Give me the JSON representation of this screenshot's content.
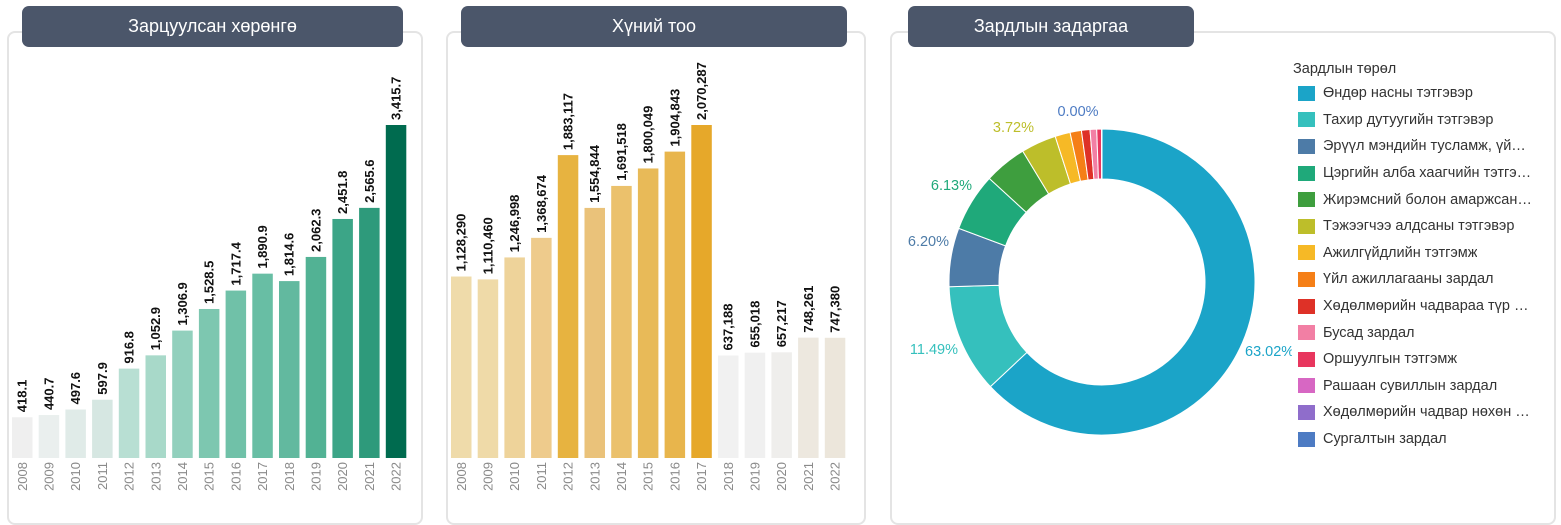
{
  "panels": {
    "assets": {
      "title": "Зарцуулсан хөрөнгө"
    },
    "people": {
      "title": "Хүний тоо"
    },
    "expense": {
      "title": "Зардлын задаргаа"
    }
  },
  "chart_data": [
    {
      "type": "bar",
      "title": "Зарцуулсан хөрөнгө",
      "categories": [
        "2008",
        "2009",
        "2010",
        "2011",
        "2012",
        "2013",
        "2014",
        "2015",
        "2016",
        "2017",
        "2018",
        "2019",
        "2020",
        "2021",
        "2022"
      ],
      "values": [
        418.1,
        440.7,
        497.6,
        597.9,
        916.8,
        1052.9,
        1306.9,
        1528.5,
        1717.4,
        1890.9,
        1814.6,
        2062.3,
        2451.8,
        2565.6,
        3415.7
      ],
      "labels": [
        "418.1",
        "440.7",
        "497.6",
        "597.9",
        "916.8",
        "1,052.9",
        "1,306.9",
        "1,528.5",
        "1,717.4",
        "1,890.9",
        "1,814.6",
        "2,062.3",
        "2,451.8",
        "2,565.6",
        "3,415.7"
      ],
      "colors": [
        "#efefef",
        "#eaefee",
        "#e0ebe8",
        "#d6e7e2",
        "#b8dfd3",
        "#a8d9c9",
        "#92d0bd",
        "#7dc7b0",
        "#70c1a8",
        "#68bea4",
        "#62b99f",
        "#52b294",
        "#3ca587",
        "#2e9a7b",
        "#006b4f"
      ],
      "ylim": [
        0,
        3600
      ]
    },
    {
      "type": "bar",
      "title": "Хүний тоо",
      "categories": [
        "2008",
        "2009",
        "2010",
        "2011",
        "2012",
        "2013",
        "2014",
        "2015",
        "2016",
        "2017",
        "2018",
        "2019",
        "2020",
        "2021",
        "2022"
      ],
      "values": [
        1128290,
        1110460,
        1246998,
        1368674,
        1883117,
        1554844,
        1691518,
        1800049,
        1904843,
        2070287,
        637188,
        655018,
        657217,
        748261,
        747380
      ],
      "labels": [
        "1,128,290",
        "1,110,460",
        "1,246,998",
        "1,368,674",
        "1,883,117",
        "1,554,844",
        "1,691,518",
        "1,800,049",
        "1,904,843",
        "2,070,287",
        "637,188",
        "655,018",
        "657,217",
        "748,261",
        "747,380"
      ],
      "colors": [
        "#efdbaa",
        "#efdaa8",
        "#eed39a",
        "#eecb8c",
        "#e7b340",
        "#eac27a",
        "#ebc16c",
        "#e8ba58",
        "#e8b54c",
        "#e6a82a",
        "#f1f1f1",
        "#f0f0f0",
        "#efeeec",
        "#ede8df",
        "#ece6db"
      ],
      "ylim": [
        0,
        2200000
      ]
    },
    {
      "type": "pie",
      "title": "Зардлын задаргаа",
      "legend_title": "Зардлын төрөл",
      "slices": [
        {
          "name": "Өндөр насны тэтгэвэр",
          "value": 63.02,
          "color": "#1ba4c8",
          "label": "63.02%"
        },
        {
          "name": "Тахир дутуугийн тэтгэвэр",
          "value": 11.49,
          "color": "#35c0bd",
          "label": "11.49%"
        },
        {
          "name": "Эрүүл мэндийн тусламж, үйлчилгээ",
          "value": 6.2,
          "color": "#4d7ba7",
          "label": "6.20%"
        },
        {
          "name": "Цэргийн алба хаагчийн тэтгэвэр",
          "value": 6.13,
          "color": "#1fa97a",
          "label": "6.13%"
        },
        {
          "name": "Жирэмсний болон амаржсаны тэтгэмж",
          "value": 4.5,
          "color": "#3e9e3e",
          "label": ""
        },
        {
          "name": "Тэжээгчээ алдсаны тэтгэвэр",
          "value": 3.72,
          "color": "#bdbe2a",
          "label": "3.72%"
        },
        {
          "name": "Ажилгүйдлийн тэтгэмж",
          "value": 1.6,
          "color": "#f6b926",
          "label": ""
        },
        {
          "name": "Үйл ажиллагааны зардал",
          "value": 1.2,
          "color": "#f57f17",
          "label": ""
        },
        {
          "name": "Хөдөлмөрийн чадвараа түр алдсаны тэтгэмж",
          "value": 0.9,
          "color": "#de3127",
          "label": ""
        },
        {
          "name": "Бусад зардал",
          "value": 0.7,
          "color": "#f27fa4",
          "label": ""
        },
        {
          "name": "Оршуулгын тэтгэмж",
          "value": 0.5,
          "color": "#e8365e",
          "label": ""
        },
        {
          "name": "Рашаан сувиллын зардал",
          "value": 0.03,
          "color": "#d767c3",
          "label": ""
        },
        {
          "name": "Хөдөлмөрийн чадвар нөхөн сэргээх",
          "value": 0.02,
          "color": "#8f6dcb",
          "label": ""
        },
        {
          "name": "Сургалтын зардал",
          "value": 0.0,
          "color": "#4d7bc3",
          "label": "0.00%"
        }
      ],
      "legend": [
        "Өндөр насны тэтгэвэр",
        "Тахир дутуугийн тэтгэвэр",
        "Эрүүл мэндийн тусламж, үй…",
        "Цэргийн алба хаагчийн тэтгэ…",
        "Жирэмсний болон амаржсан…",
        "Тэжээгчээ алдсаны тэтгэвэр",
        "Ажилгүйдлийн тэтгэмж",
        "Үйл ажиллагааны зардал",
        "Хөдөлмөрийн чадвараа түр …",
        "Бусад зардал",
        "Оршуулгын тэтгэмж",
        "Рашаан сувиллын зардал",
        "Хөдөлмөрийн чадвар нөхөн …",
        "Сургалтын зардал"
      ]
    }
  ]
}
